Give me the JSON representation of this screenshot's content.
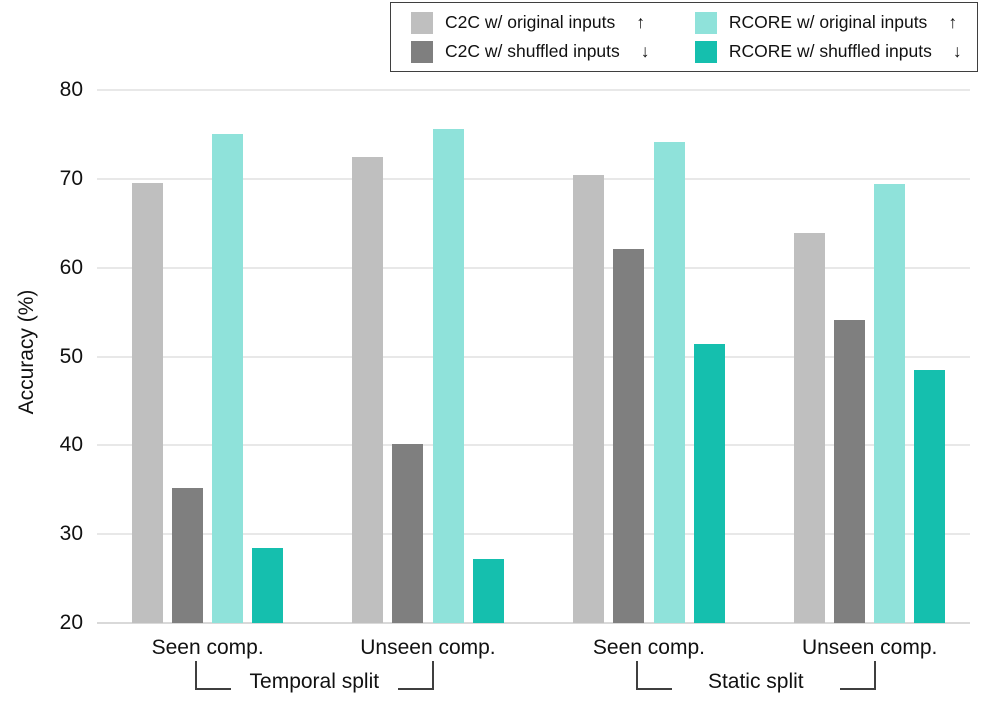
{
  "chart_data": {
    "type": "bar",
    "title": "",
    "ylabel": "Accuracy (%)",
    "ylim": [
      20,
      80
    ],
    "yticks": [
      20,
      30,
      40,
      50,
      60,
      70,
      80
    ],
    "grid": true,
    "legend_position": "top-right",
    "categories": [
      "Seen comp.",
      "Unseen comp.",
      "Seen comp.",
      "Unseen comp."
    ],
    "group_annotations": [
      {
        "label": "Temporal split",
        "start_category": 0,
        "end_category": 1
      },
      {
        "label": "Static split",
        "start_category": 2,
        "end_category": 3
      }
    ],
    "series": [
      {
        "name": "C2C w/ original inputs",
        "direction_arrow": "↑",
        "color": "#bfbfbf",
        "values": [
          69.5,
          72.5,
          70.4,
          63.9
        ]
      },
      {
        "name": "C2C w/ shuffled inputs",
        "direction_arrow": "↓",
        "color": "#7f7f7f",
        "values": [
          35.2,
          40.1,
          62.1,
          54.1
        ]
      },
      {
        "name": "RCORE w/ original inputs",
        "direction_arrow": "↑",
        "color": "#8fe2da",
        "values": [
          75.1,
          75.6,
          74.1,
          69.4
        ]
      },
      {
        "name": "RCORE w/ shuffled inputs",
        "direction_arrow": "↓",
        "color": "#15bfae",
        "values": [
          28.4,
          27.2,
          51.4,
          48.5
        ]
      }
    ],
    "colors": {
      "gridline": "#e8e8e8",
      "axis_line": "#d9d9d9",
      "legend_border": "#3f3f3f",
      "text": "#111111"
    }
  }
}
